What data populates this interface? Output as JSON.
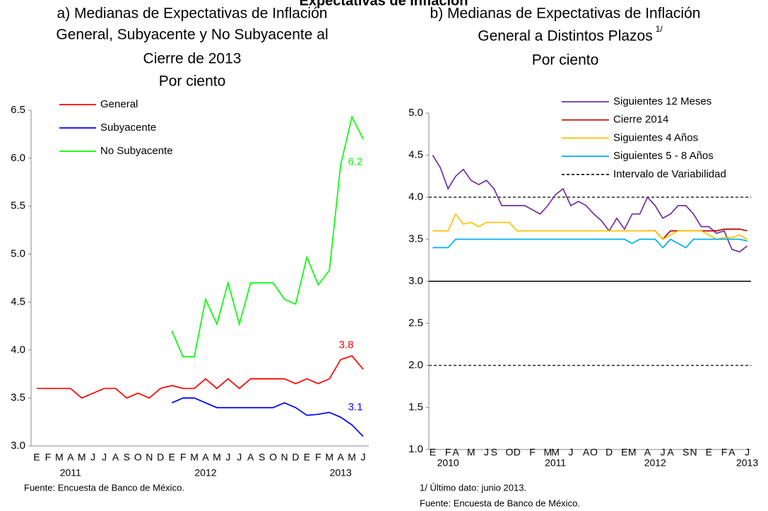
{
  "title": "Expectativas de Inflación",
  "chart_data": [
    {
      "type": "line",
      "title": [
        "a) Medianas de Expectativas de Inflación",
        "General, Subyacente y No Subyacente al",
        "Cierre de 2013",
        "Por ciento"
      ],
      "categories": [
        "E",
        "F",
        "M",
        "A",
        "M",
        "J",
        "J",
        "A",
        "S",
        "O",
        "N",
        "D",
        "E",
        "F",
        "M",
        "A",
        "M",
        "J",
        "J",
        "A",
        "S",
        "O",
        "N",
        "D",
        "E",
        "F",
        "M",
        "A",
        "M",
        "J"
      ],
      "year_labels": [
        null,
        null,
        null,
        "2011",
        null,
        null,
        null,
        null,
        null,
        null,
        null,
        null,
        null,
        null,
        null,
        "2012",
        null,
        null,
        null,
        null,
        null,
        null,
        null,
        null,
        null,
        null,
        null,
        "2013",
        null,
        null
      ],
      "series": [
        {
          "name": "General",
          "color": "#ff0000",
          "values": [
            3.6,
            3.6,
            3.6,
            3.6,
            3.5,
            3.55,
            3.6,
            3.6,
            3.5,
            3.55,
            3.5,
            3.6,
            3.63,
            3.6,
            3.6,
            3.7,
            3.6,
            3.7,
            3.6,
            3.7,
            3.7,
            3.7,
            3.7,
            3.65,
            3.7,
            3.65,
            3.7,
            3.9,
            3.94,
            3.8
          ]
        },
        {
          "name": "Subyacente",
          "color": "#0000ff",
          "values": [
            null,
            null,
            null,
            null,
            null,
            null,
            null,
            null,
            null,
            null,
            null,
            null,
            3.45,
            3.5,
            3.5,
            3.45,
            3.4,
            3.4,
            3.4,
            3.4,
            3.4,
            3.4,
            3.45,
            3.4,
            3.32,
            3.33,
            3.35,
            3.3,
            3.22,
            3.1
          ]
        },
        {
          "name": "No Subyacente",
          "color": "#00ff00",
          "values": [
            null,
            null,
            null,
            null,
            null,
            null,
            null,
            null,
            null,
            null,
            null,
            null,
            4.2,
            3.93,
            3.93,
            4.53,
            4.27,
            4.7,
            4.27,
            4.7,
            4.7,
            4.7,
            4.53,
            4.48,
            4.97,
            4.68,
            4.83,
            5.93,
            6.43,
            6.2
          ]
        }
      ],
      "label_last": true,
      "ylim": [
        3,
        6.5
      ],
      "yticks": [
        {
          "value": 3,
          "label": "3.0"
        },
        3.5,
        {
          "value": 4,
          "label": "4.0"
        },
        4.5,
        {
          "value": 5,
          "label": "5.0"
        },
        5.5,
        {
          "value": 6,
          "label": "6.0"
        },
        6.5
      ],
      "legend": "upper left",
      "notes": [
        "Fuente: Encuesta de Banco de México."
      ]
    },
    {
      "type": "line",
      "title": [
        "b) Medianas de Expectativas de Inflación",
        "General a Distintos Plazos",
        "Por ciento"
      ],
      "title_note": "1/",
      "categories": [
        "E",
        null,
        "F",
        "A",
        null,
        "M",
        null,
        "J",
        "S",
        null,
        "O",
        "D",
        null,
        "F",
        null,
        "M",
        "M",
        null,
        "J",
        null,
        "A",
        "O",
        null,
        "D",
        null,
        "E",
        "M",
        null,
        "A",
        null,
        "J",
        "A",
        null,
        "S",
        "N",
        null,
        "E",
        null,
        "F",
        "A",
        null,
        "J"
      ],
      "year_labels": [
        null,
        null,
        "2010",
        null,
        null,
        null,
        null,
        null,
        null,
        null,
        null,
        null,
        null,
        null,
        null,
        null,
        "2011",
        null,
        null,
        null,
        null,
        null,
        null,
        null,
        null,
        null,
        null,
        null,
        null,
        "2012",
        null,
        null,
        null,
        null,
        null,
        null,
        null,
        null,
        null,
        null,
        null,
        "2013"
      ],
      "series": [
        {
          "name": "Siguientes 12 Meses",
          "color": "#7030a0",
          "values": [
            4.5,
            4.35,
            4.1,
            4.25,
            4.33,
            4.2,
            4.15,
            4.2,
            4.1,
            3.9,
            3.9,
            3.9,
            3.9,
            3.85,
            3.8,
            3.9,
            4.03,
            4.1,
            3.9,
            3.95,
            3.9,
            3.8,
            3.72,
            3.6,
            3.75,
            3.62,
            3.8,
            3.8,
            4.0,
            3.9,
            3.75,
            3.8,
            3.9,
            3.9,
            3.8,
            3.65,
            3.65,
            3.57,
            3.6,
            3.38,
            3.35,
            3.42
          ]
        },
        {
          "name": "Cierre 2014",
          "color": "#c00000",
          "values": [
            null,
            null,
            null,
            null,
            null,
            null,
            null,
            null,
            null,
            null,
            null,
            null,
            null,
            null,
            null,
            null,
            null,
            null,
            null,
            null,
            null,
            null,
            null,
            null,
            null,
            null,
            null,
            null,
            3.6,
            3.6,
            3.5,
            3.6,
            3.6,
            3.6,
            3.6,
            3.6,
            3.6,
            3.6,
            3.62,
            3.62,
            3.62,
            3.6
          ]
        },
        {
          "name": "Siguientes 4 Años",
          "color": "#ffc000",
          "values": [
            3.6,
            3.6,
            3.6,
            3.8,
            3.68,
            3.7,
            3.65,
            3.7,
            3.7,
            3.7,
            3.7,
            3.6,
            3.6,
            3.6,
            3.6,
            3.6,
            3.6,
            3.6,
            3.6,
            3.6,
            3.6,
            3.6,
            3.6,
            3.6,
            3.6,
            3.6,
            3.6,
            3.6,
            3.6,
            3.6,
            3.5,
            3.55,
            3.6,
            3.6,
            3.6,
            3.6,
            3.55,
            3.5,
            3.52,
            3.52,
            3.55,
            3.5
          ]
        },
        {
          "name": "Siguientes 5 - 8 Años",
          "color": "#00b0f0",
          "values": [
            3.4,
            3.4,
            3.4,
            3.5,
            3.5,
            3.5,
            3.5,
            3.5,
            3.5,
            3.5,
            3.5,
            3.5,
            3.5,
            3.5,
            3.5,
            3.5,
            3.5,
            3.5,
            3.5,
            3.5,
            3.5,
            3.5,
            3.5,
            3.5,
            3.5,
            3.5,
            3.45,
            3.5,
            3.5,
            3.5,
            3.4,
            3.5,
            3.45,
            3.4,
            3.5,
            3.5,
            3.5,
            3.5,
            3.5,
            3.5,
            3.5,
            3.48
          ]
        }
      ],
      "reference_band": {
        "name": "Intervalo de Variabilidad",
        "lower": 2,
        "upper": 4,
        "color": "#000000"
      },
      "reference_line": {
        "value": 3,
        "color": "#000000"
      },
      "ylim": [
        1,
        5
      ],
      "yticks": [
        {
          "value": 1,
          "label": "1.0"
        },
        1.5,
        {
          "value": 2,
          "label": "2.0"
        },
        2.5,
        {
          "value": 3,
          "label": "3.0"
        },
        3.5,
        {
          "value": 4,
          "label": "4.0"
        },
        4.5,
        {
          "value": 5,
          "label": "5.0"
        }
      ],
      "legend": "upper right",
      "notes": [
        "1/ Último dato: junio 2013.",
        "Fuente: Encuesta de Banco de México."
      ]
    }
  ]
}
